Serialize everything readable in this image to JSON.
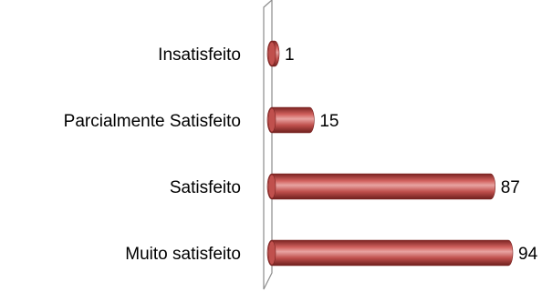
{
  "chart_data": {
    "type": "bar",
    "orientation": "horizontal",
    "style": "3d-cylinder",
    "categories": [
      "Insatisfeito",
      "Parcialmente Satisfeito",
      "Satisfeito",
      "Muito satisfeito"
    ],
    "values": [
      1,
      15,
      87,
      94
    ],
    "data_labels": [
      "1",
      "15",
      "87",
      "94"
    ],
    "title": "",
    "xlabel": "",
    "ylabel": "",
    "xlim": [
      0,
      94
    ],
    "grid": false,
    "legend": "none",
    "colors": {
      "bar": "#c0504d",
      "bar_dark": "#7a2321",
      "bar_light": "#e8a4a2",
      "axis_wall": "#8c8c8c"
    }
  }
}
